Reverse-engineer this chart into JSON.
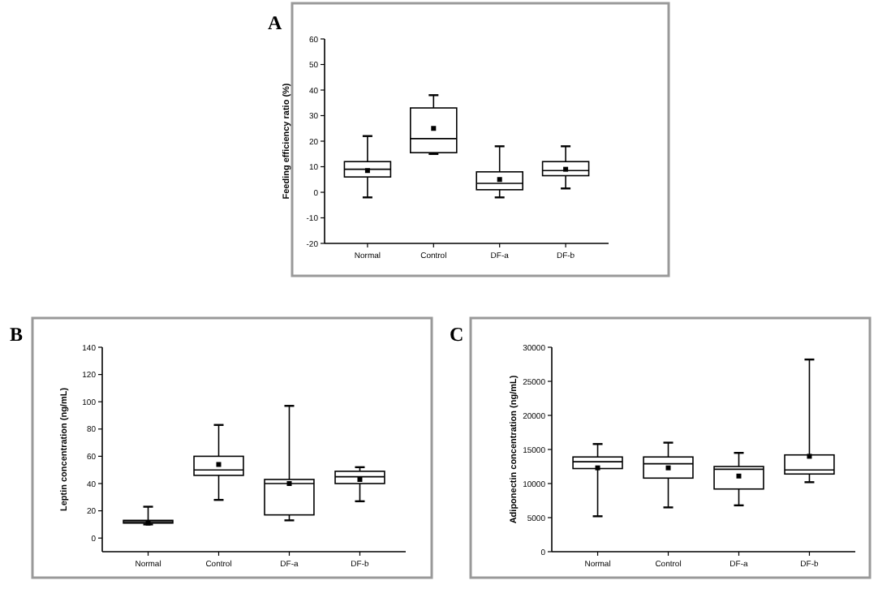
{
  "chart_data": [
    {
      "type": "box",
      "title": "A",
      "ylabel": "Feeding efficiency ratio (%)",
      "categories": [
        "Normal",
        "Control",
        "DF-a",
        "DF-b"
      ],
      "ylim": [
        -20,
        60
      ],
      "yticks": [
        -20,
        -10,
        0,
        10,
        20,
        30,
        40,
        50,
        60
      ],
      "grid": false,
      "boxes": [
        {
          "low": -2,
          "q1": 6,
          "median": 9,
          "q3": 12,
          "high": 22,
          "mean": 8.5
        },
        {
          "low": 15,
          "q1": 15.5,
          "median": 21,
          "q3": 33,
          "high": 38,
          "mean": 25
        },
        {
          "low": -2,
          "q1": 1,
          "median": 3.5,
          "q3": 8,
          "high": 18,
          "mean": 5
        },
        {
          "low": 1.5,
          "q1": 6.5,
          "median": 8.5,
          "q3": 12,
          "high": 18,
          "mean": 9
        }
      ]
    },
    {
      "type": "box",
      "title": "B",
      "ylabel": "Leptin concentration (ng/mL)",
      "categories": [
        "Normal",
        "Control",
        "DF-a",
        "DF-b"
      ],
      "ylim": [
        -10,
        140
      ],
      "yticks": [
        0,
        20,
        40,
        60,
        80,
        100,
        120,
        140
      ],
      "grid": false,
      "boxes": [
        {
          "low": 10,
          "q1": 11,
          "median": 12,
          "q3": 13,
          "high": 23,
          "mean": 11
        },
        {
          "low": 28,
          "q1": 46,
          "median": 50,
          "q3": 60,
          "high": 83,
          "mean": 54
        },
        {
          "low": 13,
          "q1": 17,
          "median": 40,
          "q3": 43,
          "high": 97,
          "mean": 40
        },
        {
          "low": 27,
          "q1": 40,
          "median": 45,
          "q3": 49,
          "high": 52,
          "mean": 43
        }
      ]
    },
    {
      "type": "box",
      "title": "C",
      "ylabel": "Adiponectin concentration (ng/mL)",
      "categories": [
        "Normal",
        "Control",
        "DF-a",
        "DF-b"
      ],
      "ylim": [
        0,
        30000
      ],
      "yticks": [
        0,
        5000,
        10000,
        15000,
        20000,
        25000,
        30000
      ],
      "grid": false,
      "boxes": [
        {
          "low": 5200,
          "q1": 12200,
          "median": 13200,
          "q3": 13900,
          "high": 15800,
          "mean": 12300
        },
        {
          "low": 6500,
          "q1": 10800,
          "median": 12900,
          "q3": 13900,
          "high": 16000,
          "mean": 12300
        },
        {
          "low": 6800,
          "q1": 9200,
          "median": 12100,
          "q3": 12500,
          "high": 14500,
          "mean": 11100
        },
        {
          "low": 10200,
          "q1": 11400,
          "median": 12000,
          "q3": 14200,
          "high": 28200,
          "mean": 14000
        }
      ]
    }
  ]
}
